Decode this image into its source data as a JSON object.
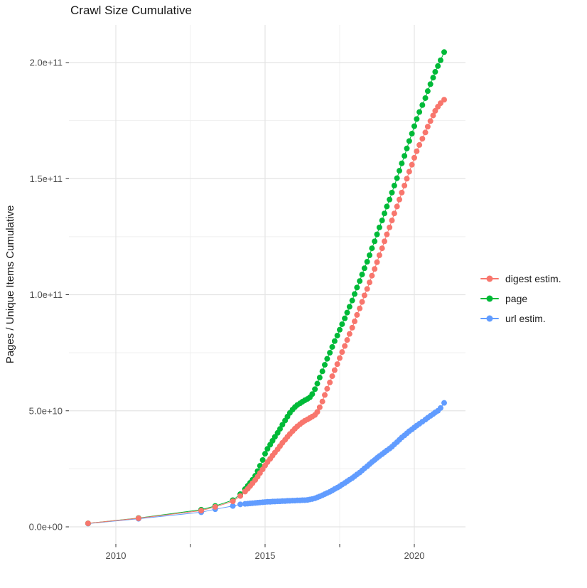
{
  "chart_data": {
    "type": "scatter",
    "title": "Crawl Size Cumulative",
    "xlabel": "",
    "ylabel": "Pages / Unique Items Cumulative",
    "grid": true,
    "legend_position": "right",
    "x_axis": {
      "major_ticks": [
        {
          "value": 2010,
          "label": "2010"
        },
        {
          "value": 2015,
          "label": "2015"
        },
        {
          "value": 2020,
          "label": "2020"
        }
      ],
      "minor_ticks": [
        2012.5,
        2017.5
      ],
      "range_years": [
        2008.4,
        2021.7
      ]
    },
    "y_axis": {
      "major_ticks": [
        {
          "value_billion": 0,
          "label": "0.0e+00"
        },
        {
          "value_billion": 50,
          "label": "5.0e+10"
        },
        {
          "value_billion": 100,
          "label": "1.0e+11"
        },
        {
          "value_billion": 150,
          "label": "1.5e+11"
        },
        {
          "value_billion": 200,
          "label": "2.0e+11"
        }
      ],
      "minor_ticks_billion": [
        25,
        75,
        125,
        175
      ],
      "range_billion": [
        -7,
        216
      ]
    },
    "series": [
      {
        "name": "digest estim.",
        "color": "#F8766D",
        "points": [
          [
            2009.07,
            1.5
          ],
          [
            2010.76,
            3.7
          ],
          [
            2012.86,
            7.0
          ],
          [
            2013.33,
            8.6
          ],
          [
            2013.92,
            11.0
          ],
          [
            2014.17,
            13.3
          ],
          [
            2014.33,
            15.2
          ],
          [
            2014.42,
            16.4
          ],
          [
            2014.5,
            17.6
          ],
          [
            2014.58,
            18.8
          ],
          [
            2014.67,
            20.2
          ],
          [
            2014.75,
            21.6
          ],
          [
            2014.83,
            23.2
          ],
          [
            2014.92,
            24.8
          ],
          [
            2015.0,
            26.4
          ],
          [
            2015.08,
            27.9
          ],
          [
            2015.17,
            29.3
          ],
          [
            2015.25,
            30.7
          ],
          [
            2015.33,
            32.0
          ],
          [
            2015.42,
            33.4
          ],
          [
            2015.5,
            34.8
          ],
          [
            2015.58,
            36.2
          ],
          [
            2015.67,
            37.5
          ],
          [
            2015.75,
            38.8
          ],
          [
            2015.83,
            40.0
          ],
          [
            2015.92,
            41.2
          ],
          [
            2016.0,
            42.3
          ],
          [
            2016.08,
            43.3
          ],
          [
            2016.17,
            44.2
          ],
          [
            2016.25,
            45.0
          ],
          [
            2016.33,
            45.7
          ],
          [
            2016.42,
            46.3
          ],
          [
            2016.5,
            46.9
          ],
          [
            2016.58,
            47.5
          ],
          [
            2016.67,
            48.2
          ],
          [
            2016.75,
            49.5
          ],
          [
            2016.83,
            51.5
          ],
          [
            2016.92,
            54.0
          ],
          [
            2017.0,
            56.8
          ],
          [
            2017.08,
            59.5
          ],
          [
            2017.17,
            62.2
          ],
          [
            2017.25,
            64.9
          ],
          [
            2017.33,
            67.5
          ],
          [
            2017.42,
            70.1
          ],
          [
            2017.5,
            72.7
          ],
          [
            2017.58,
            75.3
          ],
          [
            2017.67,
            77.9
          ],
          [
            2017.75,
            80.5
          ],
          [
            2017.83,
            83.1
          ],
          [
            2017.92,
            85.8
          ],
          [
            2018.0,
            88.5
          ],
          [
            2018.08,
            91.3
          ],
          [
            2018.17,
            94.1
          ],
          [
            2018.25,
            96.9
          ],
          [
            2018.33,
            99.7
          ],
          [
            2018.42,
            102.5
          ],
          [
            2018.5,
            105.3
          ],
          [
            2018.58,
            108.2
          ],
          [
            2018.67,
            111.1
          ],
          [
            2018.75,
            114.0
          ],
          [
            2018.83,
            117.0
          ],
          [
            2018.92,
            120.0
          ],
          [
            2019.0,
            123.0
          ],
          [
            2019.08,
            126.0
          ],
          [
            2019.17,
            129.0
          ],
          [
            2019.25,
            132.0
          ],
          [
            2019.33,
            135.0
          ],
          [
            2019.42,
            138.0
          ],
          [
            2019.5,
            141.0
          ],
          [
            2019.58,
            144.0
          ],
          [
            2019.67,
            147.0
          ],
          [
            2019.75,
            150.0
          ],
          [
            2019.83,
            153.0
          ],
          [
            2019.92,
            156.0
          ],
          [
            2020.0,
            159.0
          ],
          [
            2020.08,
            161.8
          ],
          [
            2020.17,
            164.5
          ],
          [
            2020.27,
            167.2
          ],
          [
            2020.37,
            169.9
          ],
          [
            2020.45,
            172.4
          ],
          [
            2020.54,
            174.8
          ],
          [
            2020.63,
            177.2
          ],
          [
            2020.7,
            179.2
          ],
          [
            2020.79,
            181.0
          ],
          [
            2020.88,
            182.5
          ],
          [
            2021.0,
            184.0
          ]
        ]
      },
      {
        "name": "page",
        "color": "#00BA38",
        "points": [
          [
            2009.07,
            1.5
          ],
          [
            2010.76,
            3.8
          ],
          [
            2012.86,
            7.4
          ],
          [
            2013.33,
            9.0
          ],
          [
            2013.92,
            11.5
          ],
          [
            2014.17,
            14.1
          ],
          [
            2014.33,
            16.3
          ],
          [
            2014.42,
            17.7
          ],
          [
            2014.5,
            19.0
          ],
          [
            2014.58,
            20.3
          ],
          [
            2014.67,
            22.0
          ],
          [
            2014.75,
            24.0
          ],
          [
            2014.83,
            26.3
          ],
          [
            2014.92,
            28.8
          ],
          [
            2015.0,
            31.5
          ],
          [
            2015.08,
            33.6
          ],
          [
            2015.17,
            35.4
          ],
          [
            2015.25,
            37.1
          ],
          [
            2015.33,
            38.8
          ],
          [
            2015.42,
            40.5
          ],
          [
            2015.5,
            42.2
          ],
          [
            2015.58,
            44.0
          ],
          [
            2015.67,
            45.8
          ],
          [
            2015.75,
            47.5
          ],
          [
            2015.83,
            49.1
          ],
          [
            2015.92,
            50.5
          ],
          [
            2016.0,
            51.6
          ],
          [
            2016.08,
            52.5
          ],
          [
            2016.17,
            53.2
          ],
          [
            2016.25,
            53.9
          ],
          [
            2016.33,
            54.5
          ],
          [
            2016.42,
            55.1
          ],
          [
            2016.5,
            55.8
          ],
          [
            2016.58,
            57.2
          ],
          [
            2016.67,
            59.3
          ],
          [
            2016.75,
            61.7
          ],
          [
            2016.83,
            64.3
          ],
          [
            2016.92,
            67.0
          ],
          [
            2017.0,
            69.8
          ],
          [
            2017.08,
            72.4
          ],
          [
            2017.17,
            75.0
          ],
          [
            2017.25,
            77.5
          ],
          [
            2017.33,
            80.0
          ],
          [
            2017.42,
            82.4
          ],
          [
            2017.5,
            84.9
          ],
          [
            2017.58,
            87.3
          ],
          [
            2017.67,
            89.8
          ],
          [
            2017.75,
            92.3
          ],
          [
            2017.83,
            94.8
          ],
          [
            2017.92,
            97.5
          ],
          [
            2018.0,
            100.3
          ],
          [
            2018.08,
            103.1
          ],
          [
            2018.17,
            105.9
          ],
          [
            2018.25,
            108.7
          ],
          [
            2018.33,
            111.4
          ],
          [
            2018.42,
            114.2
          ],
          [
            2018.5,
            117.0
          ],
          [
            2018.58,
            120.0
          ],
          [
            2018.67,
            123.0
          ],
          [
            2018.75,
            126.0
          ],
          [
            2018.83,
            129.0
          ],
          [
            2018.92,
            132.0
          ],
          [
            2019.0,
            135.0
          ],
          [
            2019.08,
            138.0
          ],
          [
            2019.17,
            141.0
          ],
          [
            2019.25,
            144.0
          ],
          [
            2019.33,
            147.0
          ],
          [
            2019.42,
            150.2
          ],
          [
            2019.5,
            153.4
          ],
          [
            2019.58,
            156.6
          ],
          [
            2019.67,
            159.8
          ],
          [
            2019.75,
            163.0
          ],
          [
            2019.83,
            166.2
          ],
          [
            2019.92,
            169.4
          ],
          [
            2020.0,
            172.6
          ],
          [
            2020.08,
            175.7
          ],
          [
            2020.17,
            178.7
          ],
          [
            2020.27,
            181.7
          ],
          [
            2020.37,
            184.7
          ],
          [
            2020.45,
            187.7
          ],
          [
            2020.54,
            190.7
          ],
          [
            2020.63,
            193.5
          ],
          [
            2020.7,
            196.0
          ],
          [
            2020.79,
            198.5
          ],
          [
            2020.88,
            201.0
          ],
          [
            2021.0,
            204.5
          ]
        ]
      },
      {
        "name": "url estim.",
        "color": "#619CFF",
        "points": [
          [
            2009.07,
            1.4
          ],
          [
            2010.76,
            3.5
          ],
          [
            2012.86,
            6.3
          ],
          [
            2013.33,
            7.6
          ],
          [
            2013.92,
            9.0
          ],
          [
            2014.17,
            9.7
          ],
          [
            2014.33,
            9.9
          ],
          [
            2014.42,
            10.0
          ],
          [
            2014.5,
            10.1
          ],
          [
            2014.58,
            10.2
          ],
          [
            2014.67,
            10.3
          ],
          [
            2014.75,
            10.4
          ],
          [
            2014.83,
            10.5
          ],
          [
            2014.92,
            10.6
          ],
          [
            2015.0,
            10.7
          ],
          [
            2015.08,
            10.8
          ],
          [
            2015.17,
            10.8
          ],
          [
            2015.25,
            10.9
          ],
          [
            2015.33,
            10.9
          ],
          [
            2015.42,
            11.0
          ],
          [
            2015.5,
            11.0
          ],
          [
            2015.58,
            11.1
          ],
          [
            2015.67,
            11.1
          ],
          [
            2015.75,
            11.2
          ],
          [
            2015.83,
            11.2
          ],
          [
            2015.92,
            11.3
          ],
          [
            2016.0,
            11.3
          ],
          [
            2016.08,
            11.4
          ],
          [
            2016.17,
            11.4
          ],
          [
            2016.25,
            11.5
          ],
          [
            2016.33,
            11.5
          ],
          [
            2016.42,
            11.6
          ],
          [
            2016.5,
            11.8
          ],
          [
            2016.58,
            12.0
          ],
          [
            2016.67,
            12.3
          ],
          [
            2016.75,
            12.7
          ],
          [
            2016.83,
            13.1
          ],
          [
            2016.92,
            13.6
          ],
          [
            2017.0,
            14.1
          ],
          [
            2017.08,
            14.6
          ],
          [
            2017.17,
            15.1
          ],
          [
            2017.25,
            15.7
          ],
          [
            2017.33,
            16.3
          ],
          [
            2017.42,
            16.9
          ],
          [
            2017.5,
            17.5
          ],
          [
            2017.58,
            18.2
          ],
          [
            2017.67,
            18.9
          ],
          [
            2017.75,
            19.6
          ],
          [
            2017.83,
            20.3
          ],
          [
            2017.92,
            21.0
          ],
          [
            2018.0,
            21.8
          ],
          [
            2018.08,
            22.6
          ],
          [
            2018.17,
            23.4
          ],
          [
            2018.25,
            24.3
          ],
          [
            2018.33,
            25.2
          ],
          [
            2018.42,
            26.1
          ],
          [
            2018.5,
            27.0
          ],
          [
            2018.58,
            27.9
          ],
          [
            2018.67,
            28.8
          ],
          [
            2018.75,
            29.7
          ],
          [
            2018.83,
            30.5
          ],
          [
            2018.92,
            31.3
          ],
          [
            2019.0,
            32.1
          ],
          [
            2019.08,
            32.9
          ],
          [
            2019.17,
            33.7
          ],
          [
            2019.25,
            34.5
          ],
          [
            2019.33,
            35.5
          ],
          [
            2019.42,
            36.5
          ],
          [
            2019.5,
            37.5
          ],
          [
            2019.58,
            38.5
          ],
          [
            2019.67,
            39.4
          ],
          [
            2019.75,
            40.3
          ],
          [
            2019.83,
            41.2
          ],
          [
            2019.92,
            42.0
          ],
          [
            2020.0,
            42.8
          ],
          [
            2020.08,
            43.6
          ],
          [
            2020.17,
            44.4
          ],
          [
            2020.27,
            45.3
          ],
          [
            2020.37,
            46.2
          ],
          [
            2020.45,
            47.0
          ],
          [
            2020.54,
            47.8
          ],
          [
            2020.63,
            48.6
          ],
          [
            2020.7,
            49.3
          ],
          [
            2020.79,
            50.0
          ],
          [
            2020.88,
            51.2
          ],
          [
            2021.0,
            53.4
          ]
        ]
      }
    ]
  }
}
